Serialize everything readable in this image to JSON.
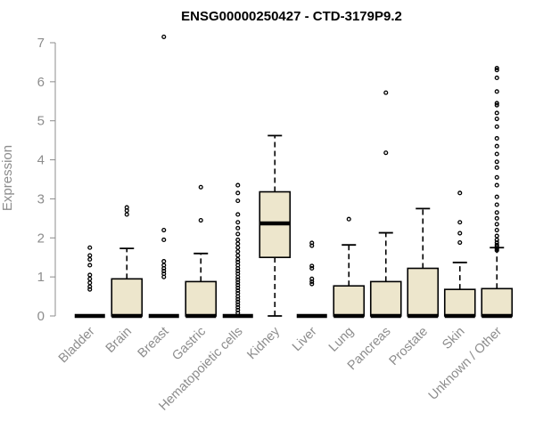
{
  "chart_data": {
    "type": "box",
    "title": "ENSG00000250427 - CTD-3179P9.2",
    "xlabel": "",
    "ylabel": "Expression",
    "ylim": [
      0,
      7
    ],
    "yticks": [
      0,
      1,
      2,
      3,
      4,
      5,
      6,
      7
    ],
    "grid": false,
    "box_fill": "#EDE6CC",
    "box_stroke": "#000000",
    "axis_color": "#8c8c8c",
    "categories": [
      "Bladder",
      "Brain",
      "Breast",
      "Gastric",
      "Hematopoietic cells",
      "Kidney",
      "Liver",
      "Lung",
      "Pancreas",
      "Prostate",
      "Skin",
      "Unknown / Other"
    ],
    "boxes": [
      {
        "min": 0,
        "q1": 0,
        "median": 0,
        "q3": 0,
        "max": 0,
        "outliers": [
          1.75,
          1.55,
          1.45,
          1.3,
          1.05,
          0.95,
          0.85,
          0.75,
          0.68
        ]
      },
      {
        "min": 0,
        "q1": 0,
        "median": 0,
        "q3": 0.95,
        "max": 1.73,
        "outliers": [
          2.6,
          2.7,
          2.78
        ]
      },
      {
        "min": 0,
        "q1": 0,
        "median": 0,
        "q3": 0,
        "max": 0,
        "outliers": [
          7.15,
          2.2,
          1.95,
          1.4,
          1.3,
          1.22,
          1.15,
          1.08,
          1.0
        ]
      },
      {
        "min": 0,
        "q1": 0,
        "median": 0,
        "q3": 0.88,
        "max": 1.6,
        "outliers": [
          3.3,
          2.45
        ]
      },
      {
        "min": 0,
        "q1": 0,
        "median": 0,
        "q3": 0,
        "max": 0,
        "outliers": [
          3.35,
          3.15,
          2.95,
          2.6,
          2.4,
          2.25,
          2.1,
          1.95,
          1.85,
          1.75,
          1.65,
          1.55,
          1.45,
          1.38,
          1.3,
          1.22,
          1.15,
          1.08,
          1.0,
          0.93,
          0.86,
          0.79,
          0.72,
          0.65,
          0.58,
          0.5,
          0.43,
          0.36,
          0.29,
          0.22,
          0.15,
          0.08
        ]
      },
      {
        "min": 0,
        "q1": 1.5,
        "median": 2.37,
        "q3": 3.18,
        "max": 4.62,
        "outliers": []
      },
      {
        "min": 0,
        "q1": 0,
        "median": 0,
        "q3": 0,
        "max": 0,
        "outliers": [
          1.87,
          1.8,
          1.28,
          1.22,
          0.95,
          0.88,
          0.82
        ]
      },
      {
        "min": 0,
        "q1": 0,
        "median": 0,
        "q3": 0.77,
        "max": 1.82,
        "outliers": [
          2.48
        ]
      },
      {
        "min": 0,
        "q1": 0,
        "median": 0,
        "q3": 0.88,
        "max": 2.13,
        "outliers": [
          5.72,
          4.18
        ]
      },
      {
        "min": 0,
        "q1": 0,
        "median": 0,
        "q3": 1.22,
        "max": 2.75,
        "outliers": []
      },
      {
        "min": 0,
        "q1": 0,
        "median": 0,
        "q3": 0.68,
        "max": 1.37,
        "outliers": [
          3.15,
          2.4,
          2.12,
          1.88
        ]
      },
      {
        "min": 0,
        "q1": 0,
        "median": 0,
        "q3": 0.7,
        "max": 1.75,
        "outliers": [
          6.35,
          6.3,
          6.1,
          5.75,
          5.45,
          5.4,
          5.2,
          5.05,
          4.85,
          4.55,
          4.35,
          4.15,
          3.95,
          3.8,
          3.55,
          3.35,
          3.05,
          2.85,
          2.65,
          2.5,
          2.35,
          2.2,
          2.05,
          1.95,
          1.88,
          1.82,
          1.78,
          1.72,
          1.68
        ]
      }
    ]
  }
}
